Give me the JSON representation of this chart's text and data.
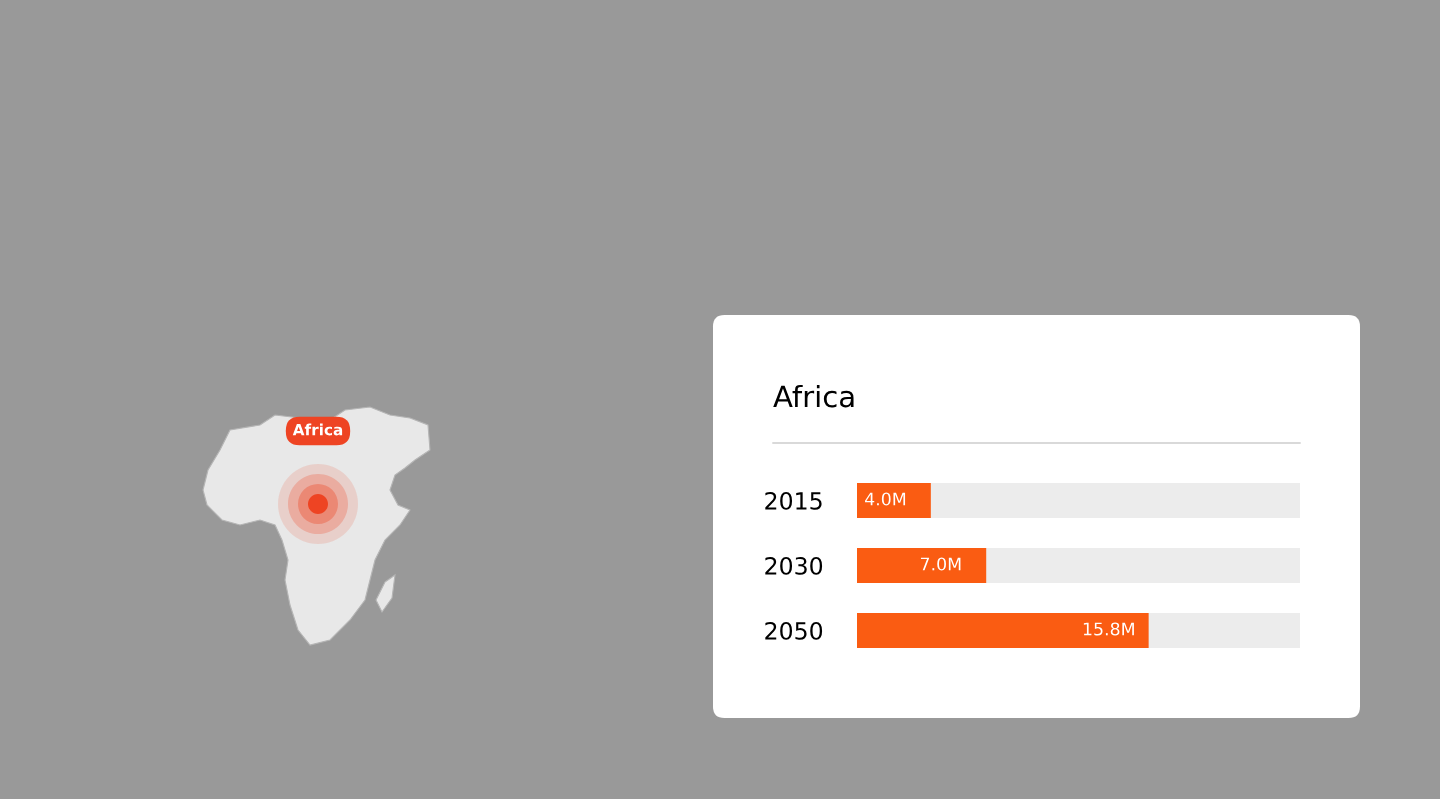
{
  "chart_data": {
    "type": "bar",
    "orientation": "horizontal",
    "title": "Africa",
    "categories": [
      "2015",
      "2030",
      "2050"
    ],
    "values": [
      4.0,
      7.0,
      15.8
    ],
    "value_labels": [
      "4.0M",
      "7.0M",
      "15.8M"
    ],
    "color": "#fa5c12",
    "xlim": [
      0,
      24
    ],
    "tick_labels": "y",
    "grid": false,
    "legend": false,
    "annotations": [
      "Africa"
    ]
  }
}
